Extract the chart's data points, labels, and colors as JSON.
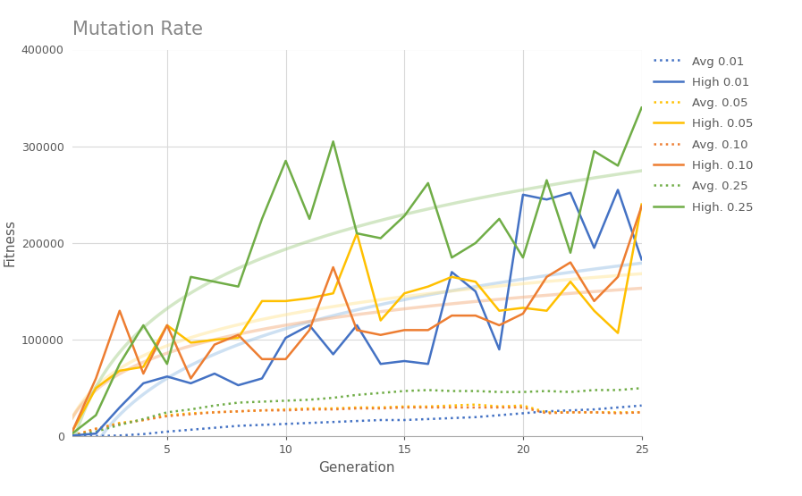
{
  "title": "Mutation Rate",
  "xlabel": "Generation",
  "ylabel": "Fitness",
  "xlim": [
    1,
    25
  ],
  "ylim": [
    0,
    400000
  ],
  "yticks": [
    0,
    100000,
    200000,
    300000,
    400000
  ],
  "xticks": [
    5,
    10,
    15,
    20,
    25
  ],
  "generations": [
    1,
    2,
    3,
    4,
    5,
    6,
    7,
    8,
    9,
    10,
    11,
    12,
    13,
    14,
    15,
    16,
    17,
    18,
    19,
    20,
    21,
    22,
    23,
    24,
    25
  ],
  "high_001": [
    1000,
    3000,
    30000,
    55000,
    62000,
    55000,
    65000,
    53000,
    60000,
    102000,
    115000,
    85000,
    115000,
    75000,
    78000,
    75000,
    170000,
    150000,
    90000,
    250000,
    245000,
    252000,
    195000,
    255000,
    183000
  ],
  "avg_001": [
    200,
    500,
    1000,
    2500,
    5000,
    7000,
    9000,
    11000,
    12000,
    13000,
    14000,
    15000,
    16000,
    17000,
    17000,
    18000,
    19000,
    20000,
    22000,
    24000,
    26000,
    27000,
    28000,
    30000,
    32000
  ],
  "high_005": [
    5000,
    50000,
    68000,
    72000,
    115000,
    97000,
    100000,
    102000,
    140000,
    140000,
    143000,
    148000,
    210000,
    120000,
    148000,
    155000,
    165000,
    160000,
    130000,
    133000,
    130000,
    160000,
    130000,
    107000,
    240000
  ],
  "avg_005": [
    1000,
    8000,
    14000,
    17000,
    22000,
    24000,
    25000,
    26000,
    27000,
    28000,
    29000,
    29000,
    30000,
    30000,
    31000,
    31000,
    32000,
    33000,
    31000,
    32000,
    25000,
    25000,
    25000,
    25000,
    25000
  ],
  "high_010": [
    5000,
    60000,
    130000,
    65000,
    115000,
    60000,
    95000,
    105000,
    80000,
    80000,
    110000,
    175000,
    110000,
    105000,
    110000,
    110000,
    125000,
    125000,
    115000,
    127000,
    165000,
    180000,
    140000,
    165000,
    238000
  ],
  "avg_010": [
    500,
    8000,
    13000,
    17000,
    21000,
    23000,
    25000,
    26000,
    27000,
    27000,
    28000,
    28000,
    29000,
    29000,
    30000,
    30000,
    30000,
    30000,
    30000,
    30000,
    24000,
    25000,
    25000,
    24000,
    25000
  ],
  "high_025": [
    3000,
    22000,
    75000,
    115000,
    75000,
    165000,
    160000,
    155000,
    225000,
    285000,
    225000,
    305000,
    210000,
    205000,
    228000,
    262000,
    185000,
    200000,
    225000,
    185000,
    265000,
    190000,
    295000,
    280000,
    340000
  ],
  "avg_025": [
    500,
    5000,
    12000,
    18000,
    25000,
    28000,
    32000,
    35000,
    36000,
    37000,
    38000,
    40000,
    43000,
    45000,
    47000,
    48000,
    47000,
    47000,
    46000,
    46000,
    47000,
    46000,
    48000,
    48000,
    50000
  ],
  "color_blue": "#4472C4",
  "color_blue_light": "#9DC3E6",
  "color_orange": "#ED7D31",
  "color_orange_light": "#F4B183",
  "color_yellow": "#FFC000",
  "color_yellow_light": "#FFE699",
  "color_green": "#70AD47",
  "color_green_light": "#A9D18E",
  "bg_color": "#FFFFFF",
  "grid_color": "#D9D9D9"
}
